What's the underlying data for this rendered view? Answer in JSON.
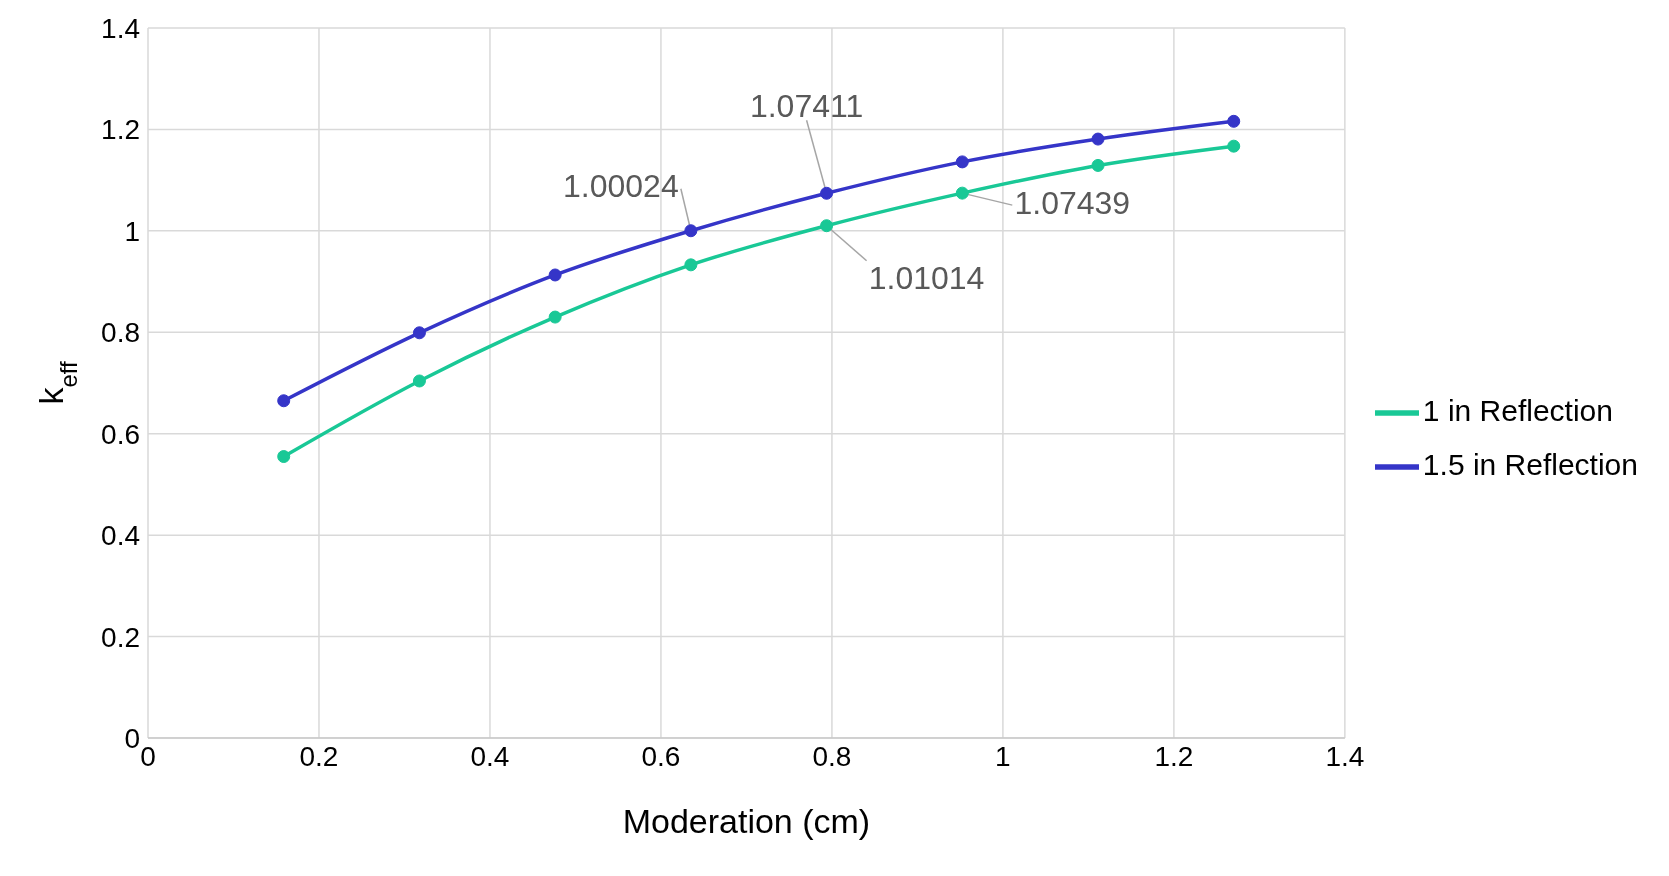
{
  "chart_data": {
    "type": "line",
    "xlabel": "Moderation (cm)",
    "ylabel": "k$_{eff}$",
    "xlim": [
      0,
      1.4
    ],
    "xticks": [
      0,
      0.2,
      0.4,
      0.6,
      0.8,
      1,
      1.2,
      1.4
    ],
    "ylim": [
      0,
      1.4
    ],
    "yticks": [
      0,
      0.2,
      0.4,
      0.6,
      0.8,
      1,
      1.2,
      1.4
    ],
    "grid": true,
    "legend": "right",
    "marker": "circle",
    "line_style": "solid",
    "series": [
      {
        "name": "1 in Reflection",
        "color": "#19c896",
        "x": [
          0.15875,
          0.3175,
          0.47625,
          0.635,
          0.79375,
          0.9525,
          1.11125,
          1.27
        ],
        "values": [
          0.555,
          0.704,
          0.83,
          0.933,
          1.01014,
          1.07439,
          1.129,
          1.167
        ]
      },
      {
        "name": "1.5 in Reflection",
        "color": "#3535c8",
        "x": [
          0.15875,
          0.3175,
          0.47625,
          0.635,
          0.79375,
          0.9525,
          1.11125,
          1.27
        ],
        "values": [
          0.665,
          0.799,
          0.913,
          1.00024,
          1.07411,
          1.136,
          1.181,
          1.216
        ]
      }
    ],
    "annotations": [
      {
        "text": "1.00024",
        "x": 0.635,
        "y": 1.00024
      },
      {
        "text": "1.07411",
        "x": 0.79375,
        "y": 1.07411
      },
      {
        "text": "1.07439",
        "x": 0.9525,
        "y": 1.07439
      },
      {
        "text": "1.01014",
        "x": 0.79375,
        "y": 1.01014
      }
    ]
  }
}
